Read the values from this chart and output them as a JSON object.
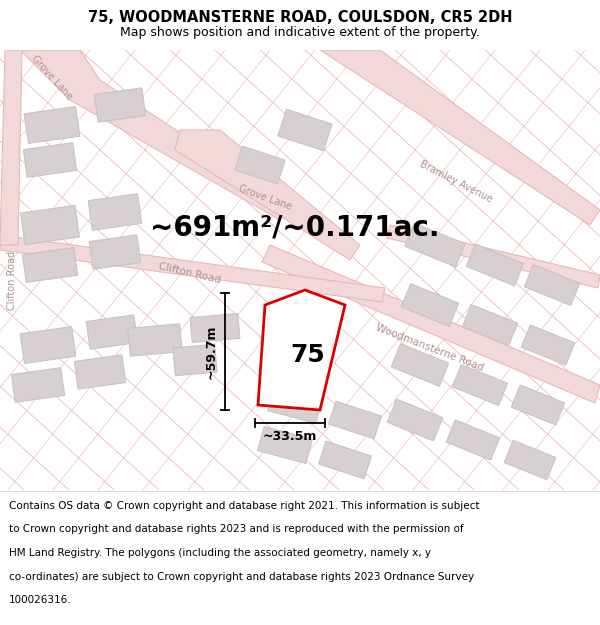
{
  "title": "75, WOODMANSTERNE ROAD, COULSDON, CR5 2DH",
  "subtitle": "Map shows position and indicative extent of the property.",
  "area_text": "~691m²/~0.171ac.",
  "number_label": "75",
  "dim_vertical": "~59.7m",
  "dim_horizontal": "~33.5m",
  "footer_lines": [
    "Contains OS data © Crown copyright and database right 2021. This information is subject",
    "to Crown copyright and database rights 2023 and is reproduced with the permission of",
    "HM Land Registry. The polygons (including the associated geometry, namely x, y",
    "co-ordinates) are subject to Crown copyright and database rights 2023 Ordnance Survey",
    "100026316."
  ],
  "bg_color": "#f7f0f0",
  "road_fill": "#f2d8d8",
  "road_edge": "#e8b8b8",
  "building_fill": "#d8d0d0",
  "building_edge": "#c8c0c0",
  "plot_edge": "#dd0000",
  "plot_fill": "#ffffff",
  "line_color": "#e8a0a0",
  "title_fontsize": 10.5,
  "subtitle_fontsize": 9,
  "area_fontsize": 20,
  "number_fontsize": 18,
  "dim_fontsize": 9,
  "road_label_fontsize": 7,
  "footer_fontsize": 7.5
}
